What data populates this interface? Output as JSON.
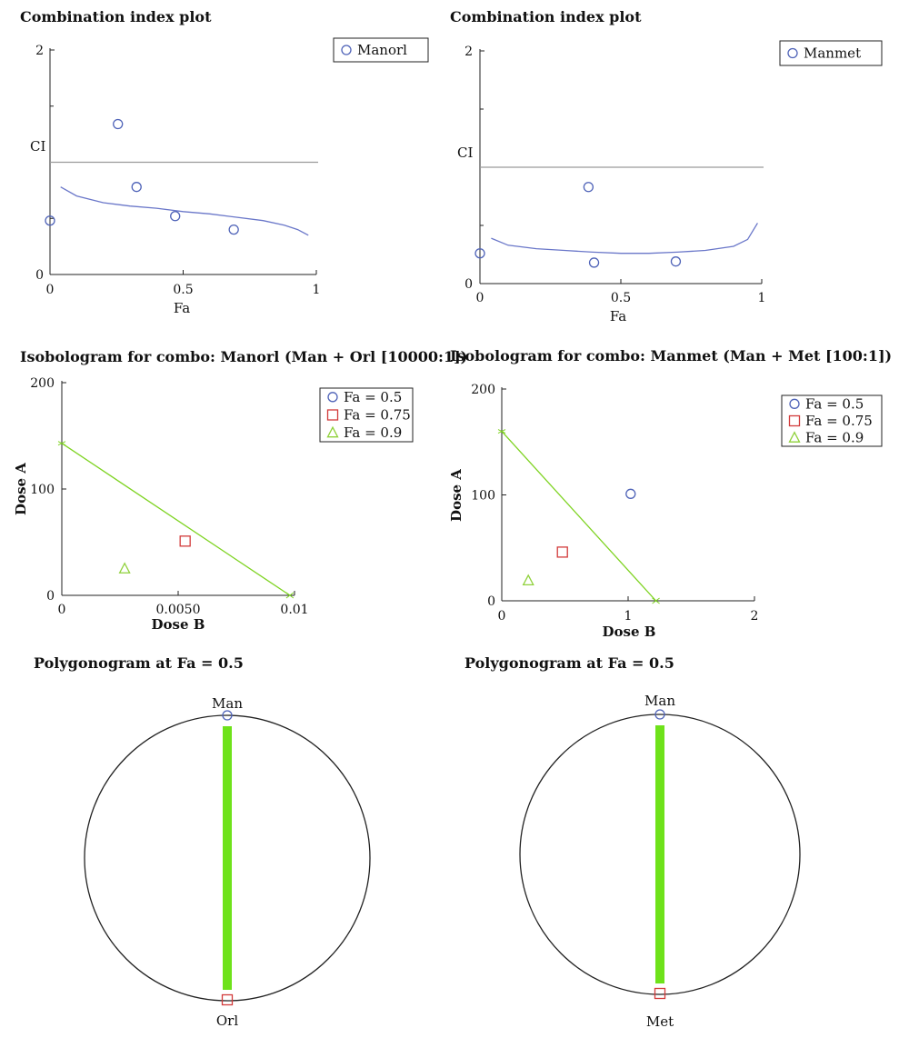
{
  "colors": {
    "marker_blue": "#4f63b8",
    "curve_blue": "#6a77c9",
    "marker_red": "#d23a3a",
    "marker_green": "#8fd13a",
    "isobole_green": "#7ed321",
    "bar_green": "#6ee21a",
    "ref_line": "#9a9a9a",
    "axis": "#222222"
  },
  "chart_data": [
    {
      "id": "ci-manorl",
      "type": "scatter",
      "title": "Combination index plot",
      "xlabel": "Fa",
      "ylabel": "CI",
      "xlim": [
        0,
        1
      ],
      "ylim": [
        0,
        2
      ],
      "xticks": [
        "0",
        "0.5",
        "1"
      ],
      "yticks": [
        "0",
        "2"
      ],
      "reference_line": 1,
      "legend": {
        "position": "top-right",
        "entries": [
          {
            "label": "Manorl",
            "marker": "circle"
          }
        ]
      },
      "points": [
        {
          "x": 0.0,
          "y": 0.48
        },
        {
          "x": 0.255,
          "y": 1.34
        },
        {
          "x": 0.325,
          "y": 0.78
        },
        {
          "x": 0.47,
          "y": 0.52
        },
        {
          "x": 0.69,
          "y": 0.4
        }
      ],
      "curve": [
        [
          0.04,
          0.78
        ],
        [
          0.1,
          0.7
        ],
        [
          0.2,
          0.64
        ],
        [
          0.3,
          0.61
        ],
        [
          0.4,
          0.59
        ],
        [
          0.5,
          0.56
        ],
        [
          0.6,
          0.54
        ],
        [
          0.7,
          0.51
        ],
        [
          0.8,
          0.48
        ],
        [
          0.88,
          0.44
        ],
        [
          0.93,
          0.4
        ],
        [
          0.97,
          0.35
        ]
      ]
    },
    {
      "id": "ci-manmet",
      "type": "scatter",
      "title": "Combination index plot",
      "xlabel": "Fa",
      "ylabel": "CI",
      "xlim": [
        0,
        1
      ],
      "ylim": [
        0,
        2
      ],
      "xticks": [
        "0",
        "0.5",
        "1"
      ],
      "yticks": [
        "0",
        "2"
      ],
      "reference_line": 1,
      "legend": {
        "position": "top-right",
        "entries": [
          {
            "label": "Manmet",
            "marker": "circle"
          }
        ]
      },
      "points": [
        {
          "x": 0.0,
          "y": 0.26
        },
        {
          "x": 0.385,
          "y": 0.83
        },
        {
          "x": 0.405,
          "y": 0.18
        },
        {
          "x": 0.695,
          "y": 0.19
        }
      ],
      "curve": [
        [
          0.04,
          0.39
        ],
        [
          0.1,
          0.33
        ],
        [
          0.2,
          0.3
        ],
        [
          0.3,
          0.285
        ],
        [
          0.4,
          0.27
        ],
        [
          0.5,
          0.26
        ],
        [
          0.6,
          0.26
        ],
        [
          0.7,
          0.27
        ],
        [
          0.8,
          0.285
        ],
        [
          0.9,
          0.32
        ],
        [
          0.95,
          0.38
        ],
        [
          0.985,
          0.52
        ]
      ]
    },
    {
      "id": "iso-manorl",
      "type": "scatter",
      "title": "Isobologram for combo: Manorl (Man + Orl [10000:1])",
      "xlabel": "Dose B",
      "ylabel": "Dose A",
      "xlim": [
        0,
        0.01
      ],
      "ylim": [
        0,
        200
      ],
      "xticks": [
        "0",
        "0.0050",
        "0.01"
      ],
      "yticks": [
        "0",
        "100",
        "200"
      ],
      "legend": {
        "position": "top-right",
        "entries": [
          {
            "label": "Fa = 0.5",
            "marker": "circle"
          },
          {
            "label": "Fa = 0.75",
            "marker": "square"
          },
          {
            "label": "Fa = 0.9",
            "marker": "triangle"
          }
        ]
      },
      "isobole": [
        [
          0,
          143
        ],
        [
          0.0098,
          0
        ]
      ],
      "points": [
        {
          "x": 0.0053,
          "y": 51,
          "marker": "square"
        },
        {
          "x": 0.0027,
          "y": 25,
          "marker": "triangle"
        }
      ]
    },
    {
      "id": "iso-manmet",
      "type": "scatter",
      "title": "Isobologram for combo: Manmet (Man + Met [100:1])",
      "xlabel": "Dose B",
      "ylabel": "Dose A",
      "xlim": [
        0,
        2
      ],
      "ylim": [
        0,
        200
      ],
      "xticks": [
        "0",
        "1",
        "2"
      ],
      "yticks": [
        "0",
        "100",
        "200"
      ],
      "legend": {
        "position": "top-right",
        "entries": [
          {
            "label": "Fa = 0.5",
            "marker": "circle"
          },
          {
            "label": "Fa = 0.75",
            "marker": "square"
          },
          {
            "label": "Fa = 0.9",
            "marker": "triangle"
          }
        ]
      },
      "isobole": [
        [
          0,
          160
        ],
        [
          1.22,
          0
        ]
      ],
      "points": [
        {
          "x": 1.02,
          "y": 101,
          "marker": "circle"
        },
        {
          "x": 0.48,
          "y": 46,
          "marker": "square"
        },
        {
          "x": 0.21,
          "y": 19,
          "marker": "triangle"
        }
      ]
    },
    {
      "id": "poly-manorl",
      "type": "polygonogram",
      "title": "Polygonogram at Fa = 0.5",
      "vertices": [
        "Man",
        "Orl"
      ]
    },
    {
      "id": "poly-manmet",
      "type": "polygonogram",
      "title": "Polygonogram at Fa = 0.5",
      "vertices": [
        "Man",
        "Met"
      ]
    }
  ]
}
